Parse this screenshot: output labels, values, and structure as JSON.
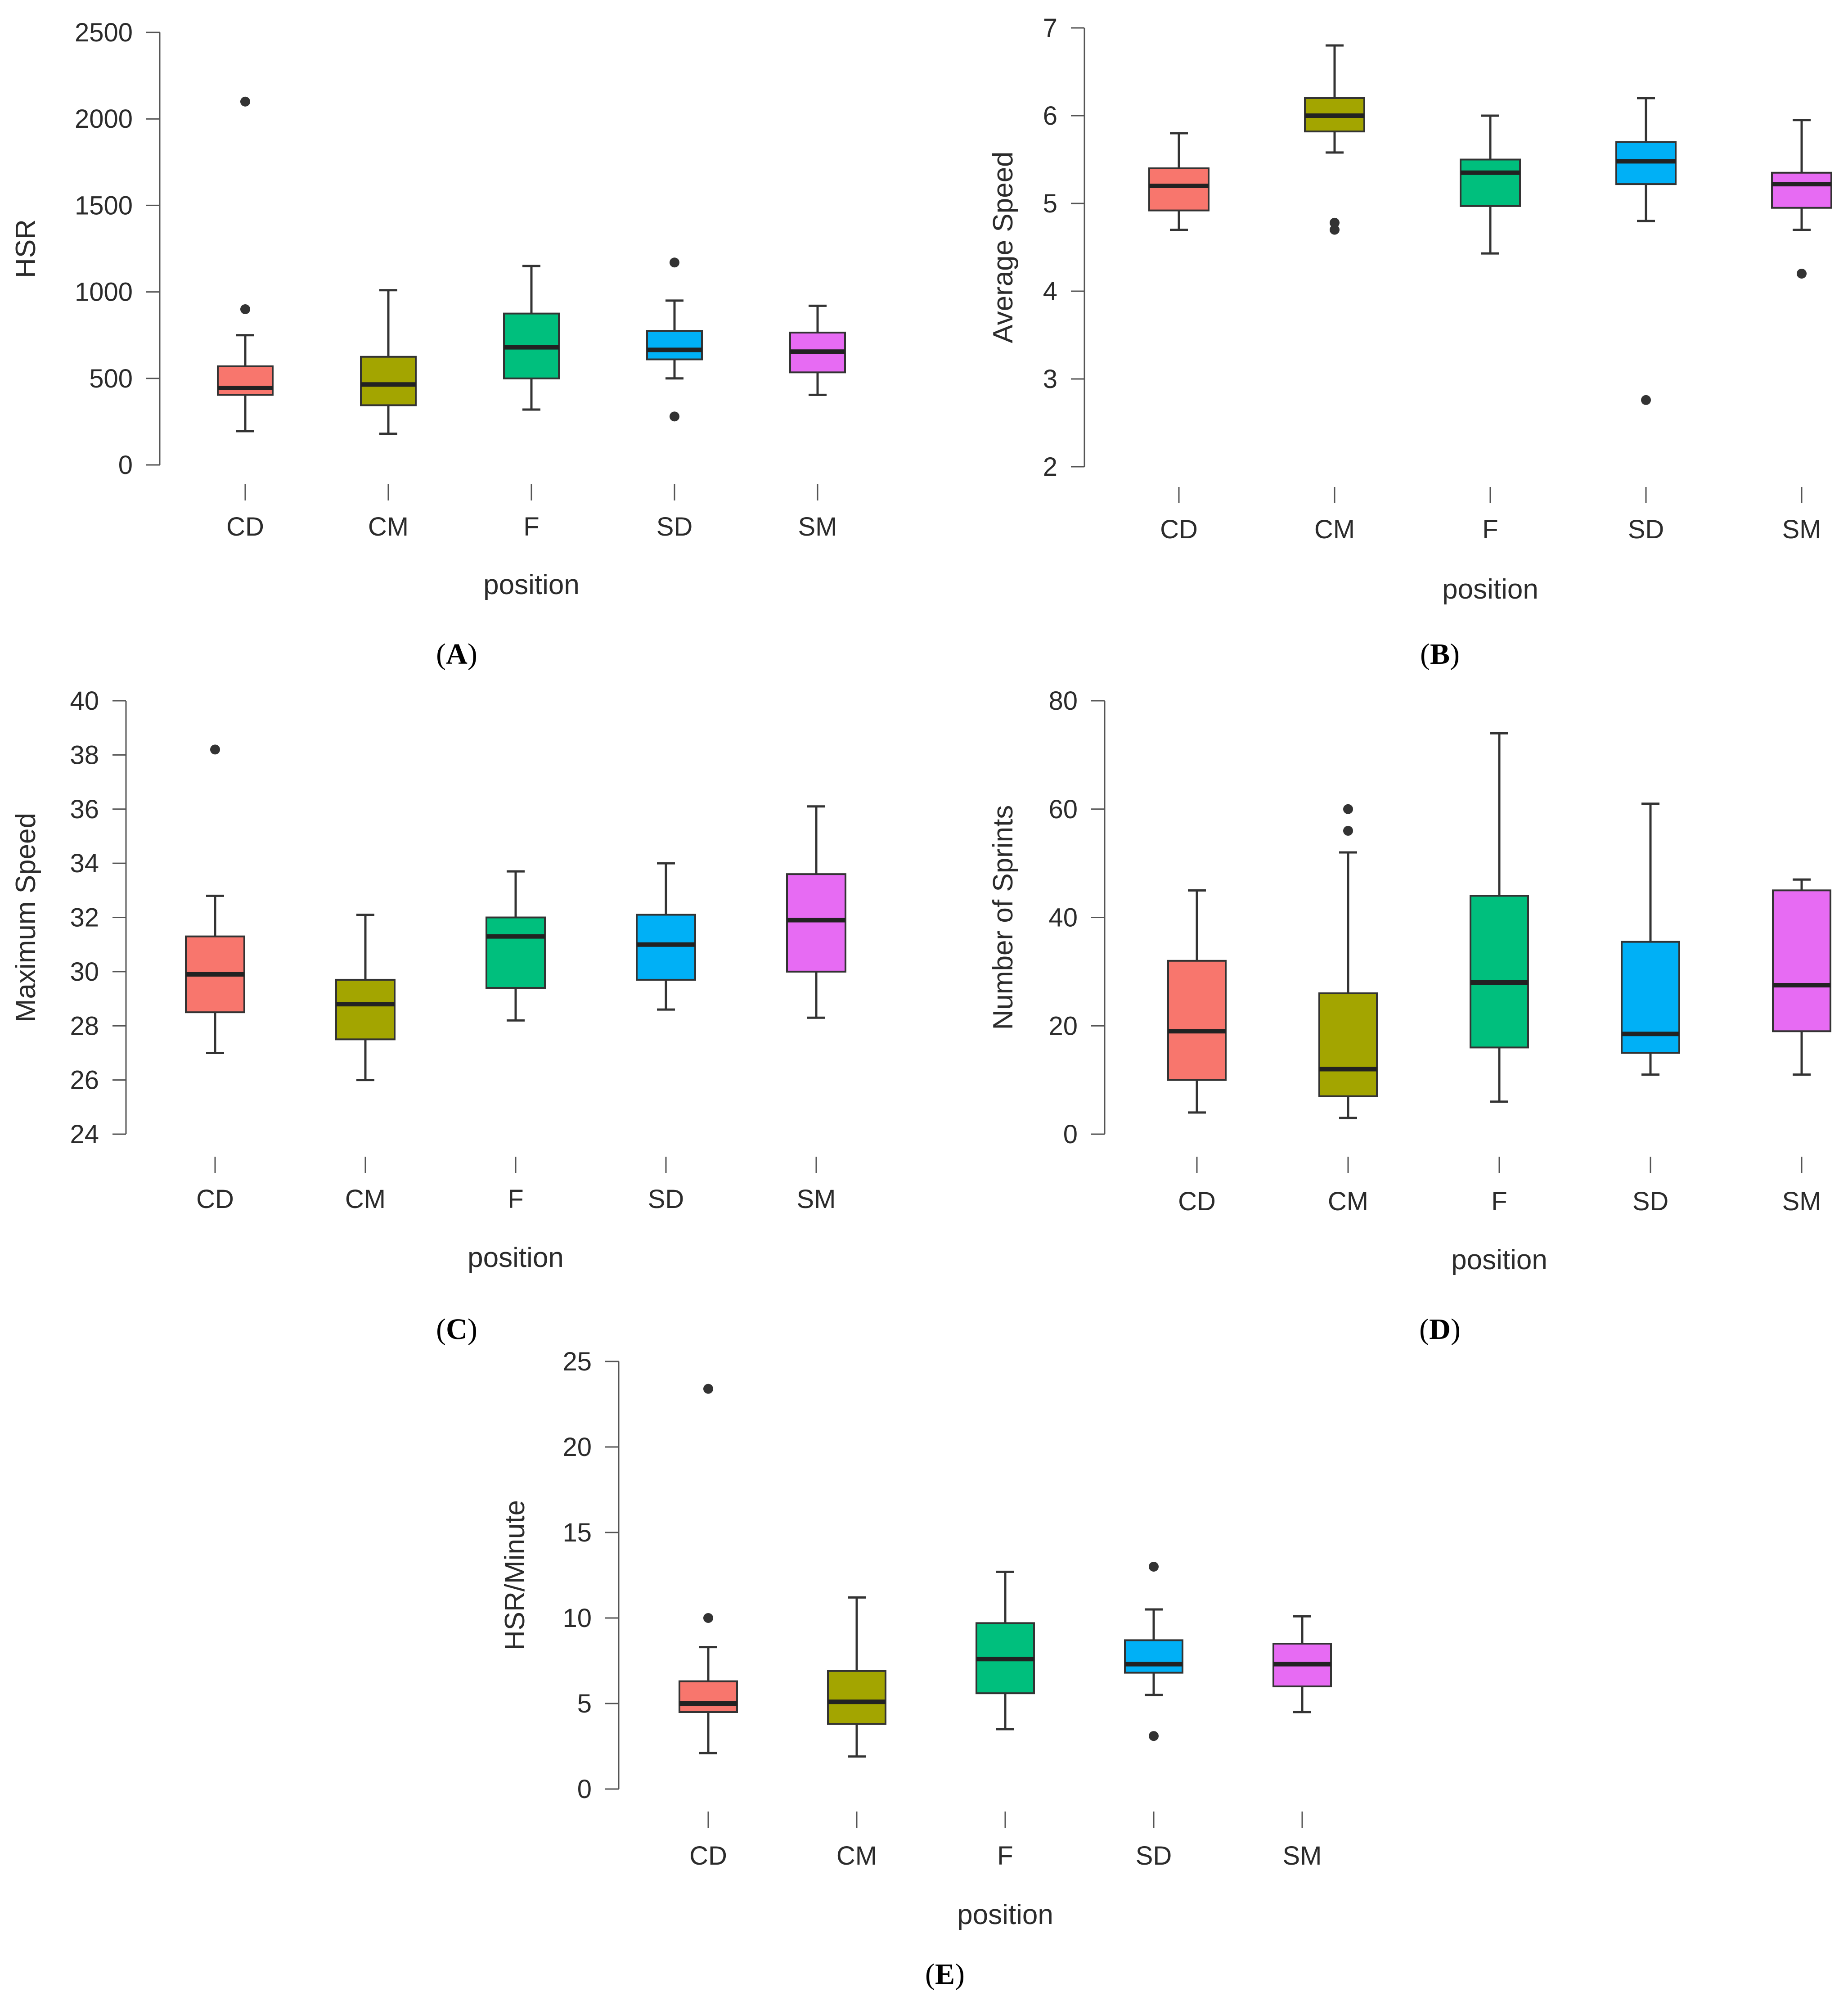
{
  "chart_data": [
    {
      "panel": "A",
      "type": "box",
      "xlabel": "position",
      "ylabel": "HSR",
      "ylim": [
        0,
        2500
      ],
      "yticks": [
        0,
        500,
        1000,
        1500,
        2000,
        2500
      ],
      "categories": [
        "CD",
        "CM",
        "F",
        "SD",
        "SM"
      ],
      "colors": [
        "#f8766d",
        "#a3a500",
        "#00bf7d",
        "#00b0f6",
        "#e76bf3"
      ],
      "boxes": [
        {
          "min": 195,
          "q1": 405,
          "median": 445,
          "q3": 570,
          "max": 750,
          "outliers": [
            900,
            2100
          ]
        },
        {
          "min": 180,
          "q1": 345,
          "median": 465,
          "q3": 625,
          "max": 1010,
          "outliers": []
        },
        {
          "min": 320,
          "q1": 500,
          "median": 680,
          "q3": 875,
          "max": 1150,
          "outliers": []
        },
        {
          "min": 500,
          "q1": 610,
          "median": 665,
          "q3": 775,
          "max": 950,
          "outliers": [
            280,
            1170
          ]
        },
        {
          "min": 405,
          "q1": 535,
          "median": 655,
          "q3": 765,
          "max": 920,
          "outliers": []
        }
      ]
    },
    {
      "panel": "B",
      "type": "box",
      "xlabel": "position",
      "ylabel": "Average Speed",
      "ylim": [
        2,
        7
      ],
      "yticks": [
        2,
        3,
        4,
        5,
        6,
        7
      ],
      "categories": [
        "CD",
        "CM",
        "F",
        "SD",
        "SM"
      ],
      "colors": [
        "#f8766d",
        "#a3a500",
        "#00bf7d",
        "#00b0f6",
        "#e76bf3"
      ],
      "boxes": [
        {
          "min": 4.7,
          "q1": 4.92,
          "median": 5.2,
          "q3": 5.4,
          "max": 5.8,
          "outliers": []
        },
        {
          "min": 5.58,
          "q1": 5.82,
          "median": 6.0,
          "q3": 6.2,
          "max": 6.8,
          "outliers": [
            4.7,
            4.78
          ]
        },
        {
          "min": 4.43,
          "q1": 4.97,
          "median": 5.35,
          "q3": 5.5,
          "max": 6.0,
          "outliers": []
        },
        {
          "min": 4.8,
          "q1": 5.22,
          "median": 5.48,
          "q3": 5.7,
          "max": 6.2,
          "outliers": [
            2.76
          ]
        },
        {
          "min": 4.7,
          "q1": 4.95,
          "median": 5.22,
          "q3": 5.35,
          "max": 5.95,
          "outliers": [
            4.2
          ]
        }
      ]
    },
    {
      "panel": "C",
      "type": "box",
      "xlabel": "position",
      "ylabel": "Maximum Speed",
      "ylim": [
        24,
        40
      ],
      "yticks": [
        24,
        26,
        28,
        30,
        32,
        34,
        36,
        38,
        40
      ],
      "categories": [
        "CD",
        "CM",
        "F",
        "SD",
        "SM"
      ],
      "colors": [
        "#f8766d",
        "#a3a500",
        "#00bf7d",
        "#00b0f6",
        "#e76bf3"
      ],
      "boxes": [
        {
          "min": 27.0,
          "q1": 28.5,
          "median": 29.9,
          "q3": 31.3,
          "max": 32.8,
          "outliers": [
            38.2
          ]
        },
        {
          "min": 26.0,
          "q1": 27.5,
          "median": 28.8,
          "q3": 29.7,
          "max": 32.1,
          "outliers": []
        },
        {
          "min": 28.2,
          "q1": 29.4,
          "median": 31.3,
          "q3": 32.0,
          "max": 33.7,
          "outliers": []
        },
        {
          "min": 28.6,
          "q1": 29.7,
          "median": 31.0,
          "q3": 32.1,
          "max": 34.0,
          "outliers": []
        },
        {
          "min": 28.3,
          "q1": 30.0,
          "median": 31.9,
          "q3": 33.6,
          "max": 36.1,
          "outliers": []
        }
      ]
    },
    {
      "panel": "D",
      "type": "box",
      "xlabel": "position",
      "ylabel": "Number of Sprints",
      "ylim": [
        0,
        80
      ],
      "yticks": [
        0,
        20,
        40,
        60,
        80
      ],
      "categories": [
        "CD",
        "CM",
        "F",
        "SD",
        "SM"
      ],
      "colors": [
        "#f8766d",
        "#a3a500",
        "#00bf7d",
        "#00b0f6",
        "#e76bf3"
      ],
      "boxes": [
        {
          "min": 4,
          "q1": 10,
          "median": 19,
          "q3": 32,
          "max": 45,
          "outliers": []
        },
        {
          "min": 3,
          "q1": 7,
          "median": 12,
          "q3": 26,
          "max": 52,
          "outliers": [
            56,
            60
          ]
        },
        {
          "min": 6,
          "q1": 16,
          "median": 28,
          "q3": 44,
          "max": 74,
          "outliers": []
        },
        {
          "min": 11,
          "q1": 15,
          "median": 18.5,
          "q3": 35.5,
          "max": 61,
          "outliers": []
        },
        {
          "min": 11,
          "q1": 19,
          "median": 27.5,
          "q3": 45,
          "max": 47,
          "outliers": []
        }
      ]
    },
    {
      "panel": "E",
      "type": "box",
      "xlabel": "position",
      "ylabel": "HSR/Minute",
      "ylim": [
        0,
        25
      ],
      "yticks": [
        0,
        5,
        10,
        15,
        20,
        25
      ],
      "categories": [
        "CD",
        "CM",
        "F",
        "SD",
        "SM"
      ],
      "colors": [
        "#f8766d",
        "#a3a500",
        "#00bf7d",
        "#00b0f6",
        "#e76bf3"
      ],
      "boxes": [
        {
          "min": 2.1,
          "q1": 4.5,
          "median": 5.0,
          "q3": 6.3,
          "max": 8.3,
          "outliers": [
            10.0,
            23.4
          ]
        },
        {
          "min": 1.9,
          "q1": 3.8,
          "median": 5.1,
          "q3": 6.9,
          "max": 11.2,
          "outliers": []
        },
        {
          "min": 3.5,
          "q1": 5.6,
          "median": 7.6,
          "q3": 9.7,
          "max": 12.7,
          "outliers": []
        },
        {
          "min": 5.5,
          "q1": 6.8,
          "median": 7.3,
          "q3": 8.7,
          "max": 10.5,
          "outliers": [
            3.1,
            13.0
          ]
        },
        {
          "min": 4.5,
          "q1": 6.0,
          "median": 7.3,
          "q3": 8.5,
          "max": 10.1,
          "outliers": []
        }
      ]
    }
  ]
}
